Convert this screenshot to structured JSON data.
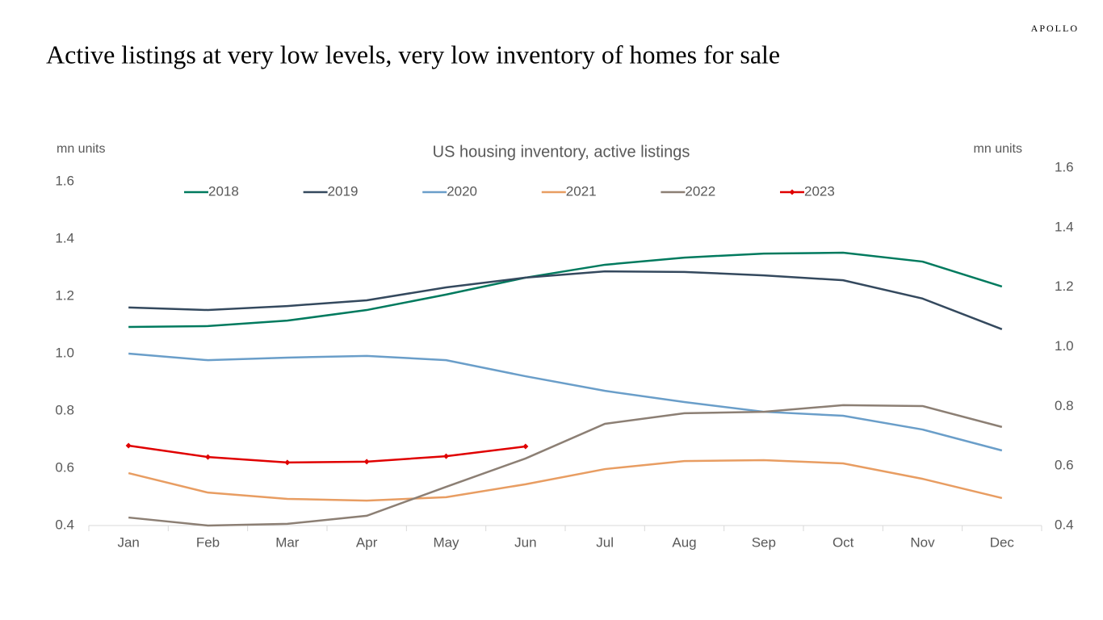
{
  "header": {
    "brand": "APOLLO",
    "title": "Active listings at very low levels, very low inventory of homes for sale"
  },
  "chart_data": {
    "type": "line",
    "title": "US housing inventory, active listings",
    "y_label": "mn units",
    "y2_label": "mn units",
    "categories": [
      "Jan",
      "Feb",
      "Mar",
      "Apr",
      "May",
      "Jun",
      "Jul",
      "Aug",
      "Sep",
      "Oct",
      "Nov",
      "Dec"
    ],
    "series": [
      {
        "name": "2018",
        "color": "#007a5e",
        "values": [
          1.093,
          1.096,
          1.115,
          1.152,
          1.206,
          1.265,
          1.31,
          1.335,
          1.349,
          1.352,
          1.321,
          1.234
        ]
      },
      {
        "name": "2019",
        "color": "#34495e",
        "values": [
          1.161,
          1.152,
          1.166,
          1.186,
          1.231,
          1.265,
          1.287,
          1.285,
          1.273,
          1.256,
          1.192,
          1.085
        ]
      },
      {
        "name": "2020",
        "color": "#6a9ec9",
        "values": [
          1.0,
          0.977,
          0.986,
          0.992,
          0.977,
          0.921,
          0.87,
          0.831,
          0.797,
          0.783,
          0.735,
          0.662
        ]
      },
      {
        "name": "2021",
        "color": "#e89d62",
        "values": [
          0.583,
          0.515,
          0.493,
          0.487,
          0.499,
          0.544,
          0.597,
          0.625,
          0.628,
          0.617,
          0.563,
          0.496
        ]
      },
      {
        "name": "2022",
        "color": "#8c7f74",
        "values": [
          0.428,
          0.4,
          0.406,
          0.434,
          0.535,
          0.634,
          0.755,
          0.792,
          0.797,
          0.82,
          0.817,
          0.744
        ]
      },
      {
        "name": "2023",
        "color": "#e00000",
        "markers": true,
        "values": [
          0.679,
          0.639,
          0.62,
          0.623,
          0.642,
          0.676,
          null,
          null,
          null,
          null,
          null,
          null
        ]
      }
    ],
    "ylim": [
      0.4,
      1.6
    ],
    "yticks": [
      0.4,
      0.6,
      0.8,
      {
        "value": 1,
        "label": "1.0"
      },
      1.2,
      1.4,
      1.6
    ],
    "y2lim": [
      0.4,
      1.6
    ],
    "y2ticks": [
      0.4,
      0.6,
      0.8,
      {
        "value": 1,
        "label": "1.0"
      },
      1.2,
      1.4,
      1.6
    ],
    "grid": false,
    "legend": "top"
  }
}
